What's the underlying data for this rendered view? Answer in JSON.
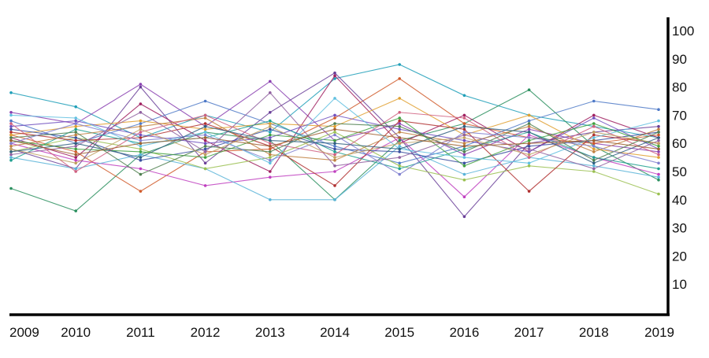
{
  "chart_data": {
    "type": "line",
    "title": "",
    "xlabel": "",
    "ylabel": "",
    "x": [
      "2009",
      "2010",
      "2011",
      "2012",
      "2013",
      "2014",
      "2015",
      "2016",
      "2017",
      "2018",
      "2019"
    ],
    "ylim": [
      0,
      105
    ],
    "yticks": [
      10,
      20,
      30,
      40,
      50,
      60,
      70,
      80,
      90,
      100
    ],
    "y_axis_side": "right",
    "grid": false,
    "legend": "none",
    "series": [
      {
        "color": "#1f9fb8",
        "values": [
          78,
          73,
          62,
          70,
          64,
          83,
          88,
          77,
          70,
          66,
          62
        ]
      },
      {
        "color": "#8a3fb0",
        "values": [
          71,
          67,
          81,
          66,
          82,
          61,
          67,
          56,
          65,
          60,
          57
        ]
      },
      {
        "color": "#2a8f5e",
        "values": [
          44,
          36,
          56,
          64,
          61,
          40,
          61,
          67,
          79,
          59,
          47
        ]
      },
      {
        "color": "#d05a2a",
        "values": [
          63,
          57,
          43,
          57,
          58,
          69,
          83,
          67,
          62,
          60,
          63
        ]
      },
      {
        "color": "#6a3f99",
        "values": [
          58,
          51,
          80,
          53,
          71,
          85,
          62,
          34,
          60,
          64,
          66
        ]
      },
      {
        "color": "#a02060",
        "values": [
          62,
          55,
          74,
          61,
          50,
          84,
          60,
          70,
          57,
          70,
          62
        ]
      },
      {
        "color": "#4e79c7",
        "values": [
          68,
          60,
          67,
          75,
          67,
          59,
          53,
          59,
          68,
          75,
          72
        ]
      },
      {
        "color": "#c040c0",
        "values": [
          60,
          54,
          51,
          45,
          48,
          50,
          62,
          41,
          63,
          55,
          49
        ]
      },
      {
        "color": "#5ab4d8",
        "values": [
          55,
          51,
          56,
          51,
          40,
          40,
          59,
          49,
          55,
          52,
          48
        ]
      },
      {
        "color": "#9ac050",
        "values": [
          57,
          62,
          58,
          51,
          55,
          64,
          52,
          47,
          52,
          50,
          42
        ]
      },
      {
        "color": "#e0a030",
        "values": [
          63,
          66,
          68,
          65,
          67,
          66,
          76,
          63,
          70,
          58,
          55
        ]
      },
      {
        "color": "#3a4fa0",
        "values": [
          65,
          62,
          54,
          58,
          65,
          58,
          57,
          53,
          59,
          61,
          64
        ]
      },
      {
        "color": "#b03030",
        "values": [
          64,
          61,
          62,
          67,
          59,
          45,
          68,
          65,
          43,
          63,
          60
        ]
      },
      {
        "color": "#20a090",
        "values": [
          54,
          65,
          60,
          62,
          68,
          57,
          51,
          58,
          64,
          55,
          51
        ]
      },
      {
        "color": "#7050c0",
        "values": [
          66,
          68,
          63,
          60,
          62,
          70,
          65,
          61,
          57,
          69,
          58
        ]
      },
      {
        "color": "#c08040",
        "values": [
          59,
          63,
          66,
          69,
          56,
          54,
          64,
          60,
          66,
          57,
          65
        ]
      },
      {
        "color": "#40a040",
        "values": [
          61,
          58,
          57,
          55,
          63,
          61,
          69,
          52,
          61,
          67,
          59
        ]
      },
      {
        "color": "#60c0e0",
        "values": [
          70,
          69,
          59,
          64,
          53,
          76,
          58,
          55,
          53,
          62,
          68
        ]
      },
      {
        "color": "#9060a0",
        "values": [
          56,
          59,
          71,
          57,
          78,
          52,
          55,
          63,
          58,
          51,
          61
        ]
      },
      {
        "color": "#d06080",
        "values": [
          67,
          50,
          64,
          70,
          60,
          56,
          71,
          69,
          55,
          66,
          56
        ]
      },
      {
        "color": "#508050",
        "values": [
          62,
          64,
          49,
          59,
          57,
          67,
          66,
          57,
          67,
          54,
          64
        ]
      },
      {
        "color": "#8080d0",
        "values": [
          60,
          67,
          61,
          63,
          54,
          63,
          49,
          64,
          62,
          59,
          53
        ]
      },
      {
        "color": "#c0a060",
        "values": [
          58,
          53,
          65,
          56,
          66,
          55,
          60,
          62,
          56,
          64,
          60
        ]
      },
      {
        "color": "#306080",
        "values": [
          57,
          60,
          55,
          66,
          61,
          60,
          58,
          66,
          64,
          53,
          62
        ]
      },
      {
        "color": "#a06030",
        "values": [
          61,
          56,
          60,
          62,
          59,
          65,
          62,
          59,
          60,
          61,
          58
        ]
      }
    ]
  }
}
